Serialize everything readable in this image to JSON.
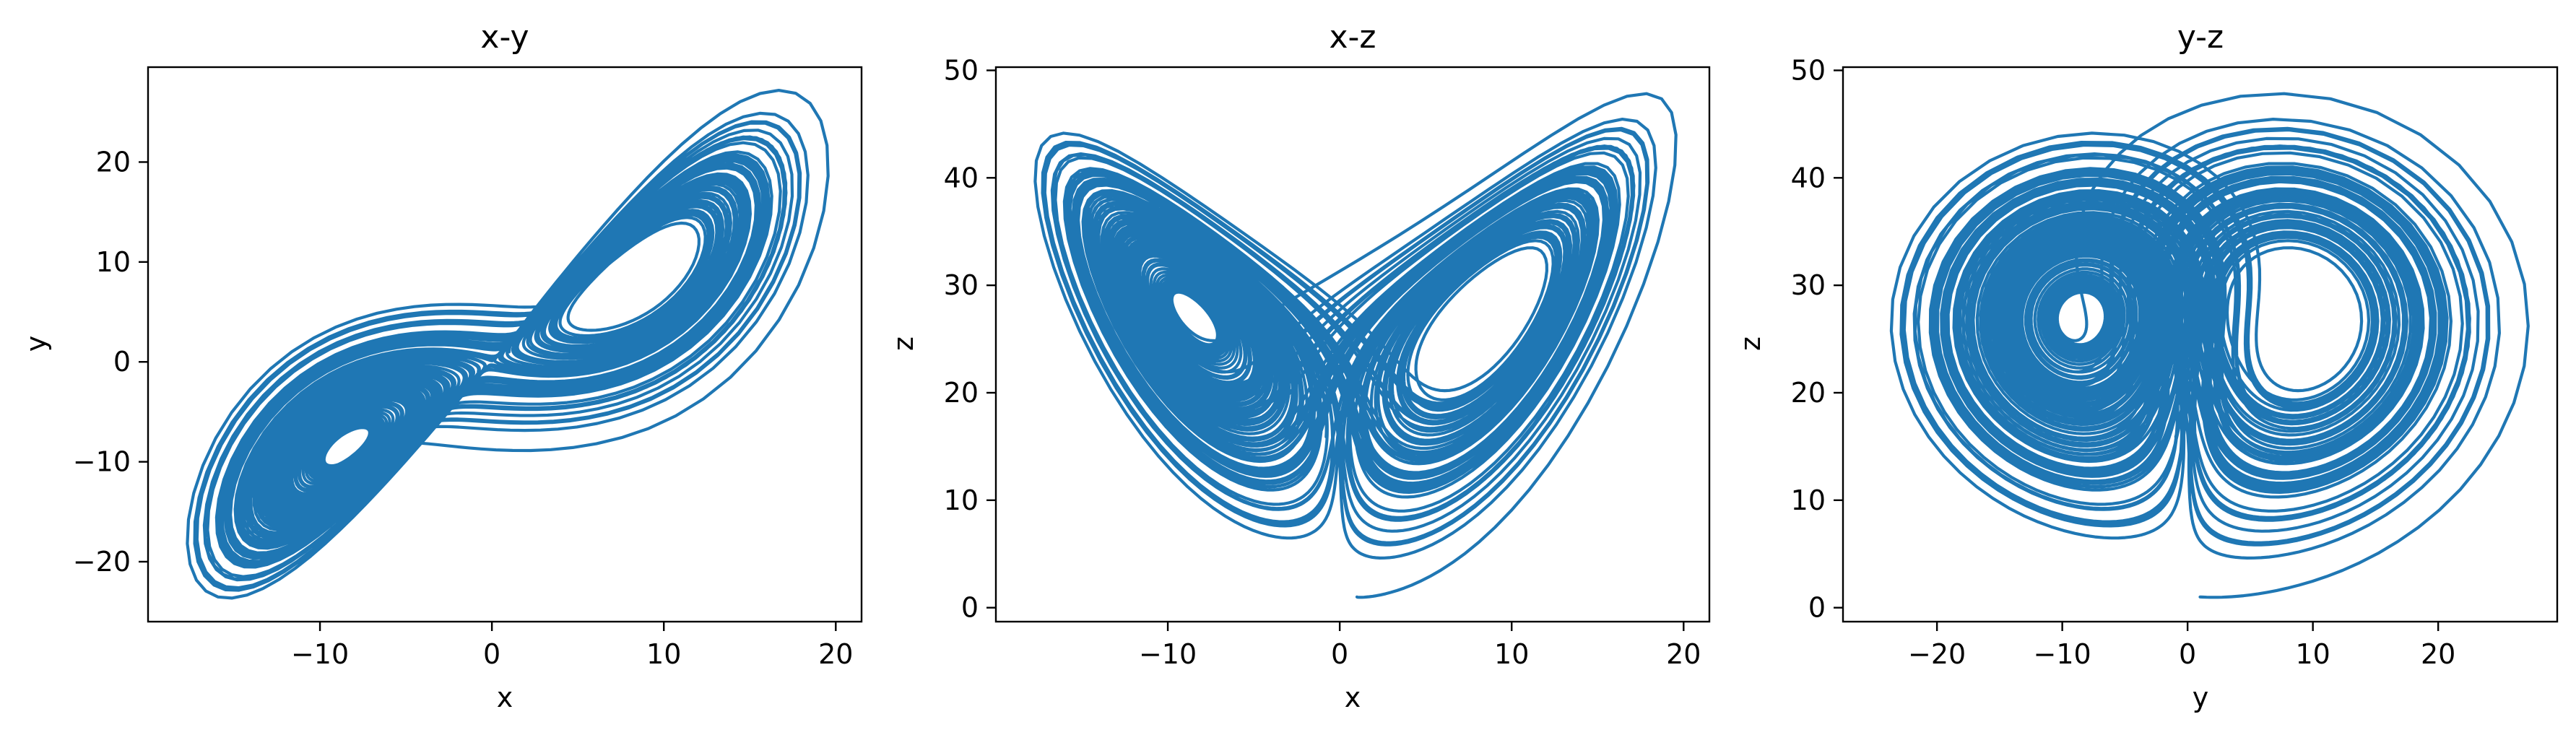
{
  "figure": {
    "panel_titles": [
      "x-y",
      "x-z",
      "y-z"
    ]
  },
  "chart_data": [
    {
      "type": "line",
      "title": "x-y",
      "xlabel": "x",
      "ylabel": "y",
      "xlim": [
        -20,
        21.5
      ],
      "ylim": [
        -26,
        29.5
      ],
      "xticks": [
        -10,
        0,
        10,
        20
      ],
      "xtick_labels": [
        "−10",
        "0",
        "10",
        "20"
      ],
      "yticks": [
        -20,
        -10,
        0,
        10,
        20
      ],
      "ytick_labels": [
        "−20",
        "−10",
        "0",
        "10",
        "20"
      ],
      "grid": false,
      "series": [
        {
          "color": "#1f77b4",
          "generator": "lorenz",
          "x_var": "x",
          "y_var": "y",
          "initial_state": [
            1,
            1,
            1
          ],
          "sigma": 10,
          "rho": 28,
          "beta": 2.6667,
          "dt": 0.01,
          "steps": 10000
        }
      ]
    },
    {
      "type": "line",
      "title": "x-z",
      "xlabel": "x",
      "ylabel": "z",
      "xlim": [
        -20,
        21.5
      ],
      "ylim": [
        -1.3,
        50.3
      ],
      "xticks": [
        -10,
        0,
        10,
        20
      ],
      "xtick_labels": [
        "−10",
        "0",
        "10",
        "20"
      ],
      "yticks": [
        0,
        10,
        20,
        30,
        40,
        50
      ],
      "ytick_labels": [
        "0",
        "10",
        "20",
        "30",
        "40",
        "50"
      ],
      "grid": false,
      "series": [
        {
          "color": "#1f77b4",
          "generator": "lorenz",
          "x_var": "x",
          "y_var": "z",
          "initial_state": [
            1,
            1,
            1
          ],
          "sigma": 10,
          "rho": 28,
          "beta": 2.6667,
          "dt": 0.01,
          "steps": 10000
        }
      ]
    },
    {
      "type": "line",
      "title": "y-z",
      "xlabel": "y",
      "ylabel": "z",
      "xlim": [
        -27.5,
        29.5
      ],
      "ylim": [
        -1.3,
        50.3
      ],
      "xticks": [
        -20,
        -10,
        0,
        10,
        20
      ],
      "xtick_labels": [
        "−20",
        "−10",
        "0",
        "10",
        "20"
      ],
      "yticks": [
        0,
        10,
        20,
        30,
        40,
        50
      ],
      "ytick_labels": [
        "0",
        "10",
        "20",
        "30",
        "40",
        "50"
      ],
      "grid": false,
      "series": [
        {
          "color": "#1f77b4",
          "generator": "lorenz",
          "x_var": "y",
          "y_var": "z",
          "initial_state": [
            1,
            1,
            1
          ],
          "sigma": 10,
          "rho": 28,
          "beta": 2.6667,
          "dt": 0.01,
          "steps": 10000
        }
      ]
    }
  ]
}
